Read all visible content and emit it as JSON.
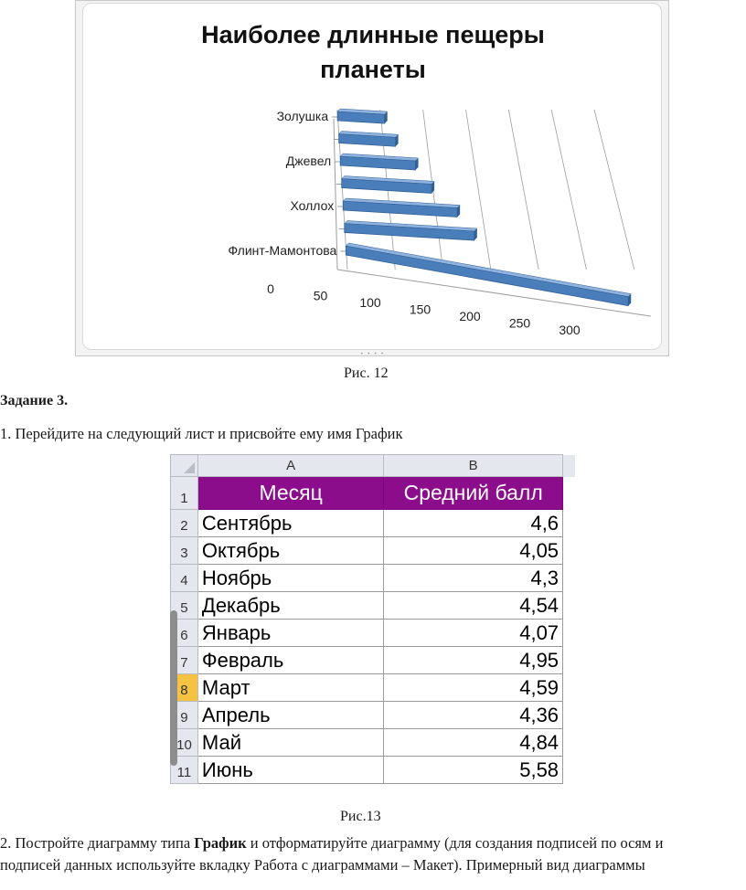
{
  "chart_data": {
    "type": "bar",
    "title": "Наиболее длинные пещеры планеты",
    "title_lines": [
      "Наиболее длинные пещеры",
      "планеты"
    ],
    "orientation": "horizontal",
    "three_d": true,
    "categories": [
      "Флинт-Мамонтова",
      "",
      "Холлох",
      "",
      "Джевел",
      "",
      "Золушка"
    ],
    "category_labels_shown": [
      "Золушка",
      "Джевел",
      "Холлох",
      "Флинт-Мамонтова"
    ],
    "values": [
      300,
      140,
      125,
      100,
      85,
      65,
      55
    ],
    "x_ticks": [
      "0",
      "50",
      "100",
      "150",
      "200",
      "250",
      "300"
    ],
    "xlim": [
      0,
      300
    ],
    "grid": true,
    "bar_color": "#4a7ebb"
  },
  "captions": {
    "fig12": "Рис. 12",
    "fig13": "Рис.13"
  },
  "task": {
    "heading": "Задание 3.",
    "step1": "1. Перейдите на следующий лист и присвойте ему имя График",
    "step2_prefix": "2. Постройте диаграмму типа ",
    "step2_bold": "График",
    "step2_suffix": " и отформатируйте диаграмму (для создания подписей по осям и",
    "step2_line2": "подписей данных  используйте вкладку Работа с диаграммами – Макет). Примерный вид диаграммы"
  },
  "sheet": {
    "col_headers": [
      "A",
      "B"
    ],
    "headers": {
      "row": "1",
      "a": "Месяц",
      "b": "Средний балл"
    },
    "rows": [
      {
        "n": "2",
        "month": "Сентябрь",
        "score": "4,6"
      },
      {
        "n": "3",
        "month": "Октябрь",
        "score": "4,05"
      },
      {
        "n": "4",
        "month": "Ноябрь",
        "score": "4,3"
      },
      {
        "n": "5",
        "month": "Декабрь",
        "score": "4,54"
      },
      {
        "n": "6",
        "month": "Январь",
        "score": "4,07"
      },
      {
        "n": "7",
        "month": "Февраль",
        "score": "4,95"
      },
      {
        "n": "8",
        "month": "Март",
        "score": "4,59"
      },
      {
        "n": "9",
        "month": "Апрель",
        "score": "4,36"
      },
      {
        "n": "10",
        "month": "Май",
        "score": "4,84"
      },
      {
        "n": "11",
        "month": "Июнь",
        "score": "5,58"
      }
    ],
    "header_fill": "#8b0d8b",
    "selected_row_fill": "#f5c242"
  }
}
